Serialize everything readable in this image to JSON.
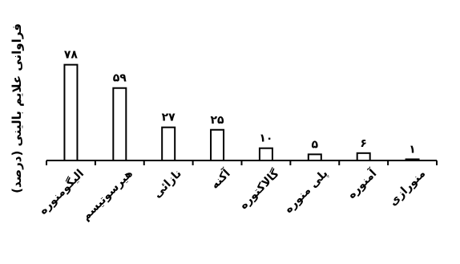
{
  "chart_data": {
    "type": "bar",
    "ylabel": "فراوانی علایم بالینی (درصد)",
    "categories": [
      "الیگومنوره",
      "هیرسوتیسم",
      "نازائی",
      "آکنه",
      "گالاکتوره",
      "پلی منوره",
      "آمنوره",
      "منورازی"
    ],
    "values": [
      78,
      59,
      27,
      25,
      10,
      5,
      6,
      1
    ],
    "value_labels": [
      "۷۸",
      "۵۹",
      "۲۷",
      "۲۵",
      "۱۰",
      "۵",
      "۶",
      "۱"
    ],
    "ylim": [
      0,
      100
    ],
    "grid": false,
    "legend": "none",
    "bar_fill": "#ffffff",
    "bar_stroke": "#000000"
  }
}
